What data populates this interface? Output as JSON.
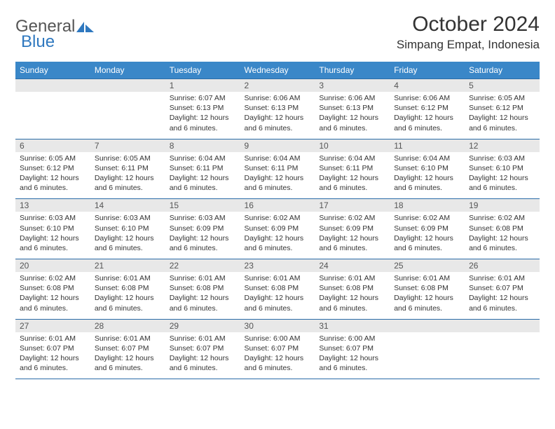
{
  "colors": {
    "header_bar": "#3a87c8",
    "header_text": "#ffffff",
    "rule": "#2a6ca8",
    "daynum_bg": "#e8e8e8",
    "body_text": "#333333",
    "logo_gray": "#6b6b6b",
    "logo_blue": "#2f78bf"
  },
  "logo": {
    "word1": "General",
    "word2": "Blue"
  },
  "title": "October 2024",
  "location": "Simpang Empat, Indonesia",
  "day_headers": [
    "Sunday",
    "Monday",
    "Tuesday",
    "Wednesday",
    "Thursday",
    "Friday",
    "Saturday"
  ],
  "weeks": [
    [
      null,
      null,
      {
        "n": "1",
        "sunrise": "6:07 AM",
        "sunset": "6:13 PM",
        "daylight": "12 hours and 6 minutes."
      },
      {
        "n": "2",
        "sunrise": "6:06 AM",
        "sunset": "6:13 PM",
        "daylight": "12 hours and 6 minutes."
      },
      {
        "n": "3",
        "sunrise": "6:06 AM",
        "sunset": "6:13 PM",
        "daylight": "12 hours and 6 minutes."
      },
      {
        "n": "4",
        "sunrise": "6:06 AM",
        "sunset": "6:12 PM",
        "daylight": "12 hours and 6 minutes."
      },
      {
        "n": "5",
        "sunrise": "6:05 AM",
        "sunset": "6:12 PM",
        "daylight": "12 hours and 6 minutes."
      }
    ],
    [
      {
        "n": "6",
        "sunrise": "6:05 AM",
        "sunset": "6:12 PM",
        "daylight": "12 hours and 6 minutes."
      },
      {
        "n": "7",
        "sunrise": "6:05 AM",
        "sunset": "6:11 PM",
        "daylight": "12 hours and 6 minutes."
      },
      {
        "n": "8",
        "sunrise": "6:04 AM",
        "sunset": "6:11 PM",
        "daylight": "12 hours and 6 minutes."
      },
      {
        "n": "9",
        "sunrise": "6:04 AM",
        "sunset": "6:11 PM",
        "daylight": "12 hours and 6 minutes."
      },
      {
        "n": "10",
        "sunrise": "6:04 AM",
        "sunset": "6:11 PM",
        "daylight": "12 hours and 6 minutes."
      },
      {
        "n": "11",
        "sunrise": "6:04 AM",
        "sunset": "6:10 PM",
        "daylight": "12 hours and 6 minutes."
      },
      {
        "n": "12",
        "sunrise": "6:03 AM",
        "sunset": "6:10 PM",
        "daylight": "12 hours and 6 minutes."
      }
    ],
    [
      {
        "n": "13",
        "sunrise": "6:03 AM",
        "sunset": "6:10 PM",
        "daylight": "12 hours and 6 minutes."
      },
      {
        "n": "14",
        "sunrise": "6:03 AM",
        "sunset": "6:10 PM",
        "daylight": "12 hours and 6 minutes."
      },
      {
        "n": "15",
        "sunrise": "6:03 AM",
        "sunset": "6:09 PM",
        "daylight": "12 hours and 6 minutes."
      },
      {
        "n": "16",
        "sunrise": "6:02 AM",
        "sunset": "6:09 PM",
        "daylight": "12 hours and 6 minutes."
      },
      {
        "n": "17",
        "sunrise": "6:02 AM",
        "sunset": "6:09 PM",
        "daylight": "12 hours and 6 minutes."
      },
      {
        "n": "18",
        "sunrise": "6:02 AM",
        "sunset": "6:09 PM",
        "daylight": "12 hours and 6 minutes."
      },
      {
        "n": "19",
        "sunrise": "6:02 AM",
        "sunset": "6:08 PM",
        "daylight": "12 hours and 6 minutes."
      }
    ],
    [
      {
        "n": "20",
        "sunrise": "6:02 AM",
        "sunset": "6:08 PM",
        "daylight": "12 hours and 6 minutes."
      },
      {
        "n": "21",
        "sunrise": "6:01 AM",
        "sunset": "6:08 PM",
        "daylight": "12 hours and 6 minutes."
      },
      {
        "n": "22",
        "sunrise": "6:01 AM",
        "sunset": "6:08 PM",
        "daylight": "12 hours and 6 minutes."
      },
      {
        "n": "23",
        "sunrise": "6:01 AM",
        "sunset": "6:08 PM",
        "daylight": "12 hours and 6 minutes."
      },
      {
        "n": "24",
        "sunrise": "6:01 AM",
        "sunset": "6:08 PM",
        "daylight": "12 hours and 6 minutes."
      },
      {
        "n": "25",
        "sunrise": "6:01 AM",
        "sunset": "6:08 PM",
        "daylight": "12 hours and 6 minutes."
      },
      {
        "n": "26",
        "sunrise": "6:01 AM",
        "sunset": "6:07 PM",
        "daylight": "12 hours and 6 minutes."
      }
    ],
    [
      {
        "n": "27",
        "sunrise": "6:01 AM",
        "sunset": "6:07 PM",
        "daylight": "12 hours and 6 minutes."
      },
      {
        "n": "28",
        "sunrise": "6:01 AM",
        "sunset": "6:07 PM",
        "daylight": "12 hours and 6 minutes."
      },
      {
        "n": "29",
        "sunrise": "6:01 AM",
        "sunset": "6:07 PM",
        "daylight": "12 hours and 6 minutes."
      },
      {
        "n": "30",
        "sunrise": "6:00 AM",
        "sunset": "6:07 PM",
        "daylight": "12 hours and 6 minutes."
      },
      {
        "n": "31",
        "sunrise": "6:00 AM",
        "sunset": "6:07 PM",
        "daylight": "12 hours and 6 minutes."
      },
      null,
      null
    ]
  ],
  "labels": {
    "sunrise": "Sunrise:",
    "sunset": "Sunset:",
    "daylight": "Daylight:"
  }
}
